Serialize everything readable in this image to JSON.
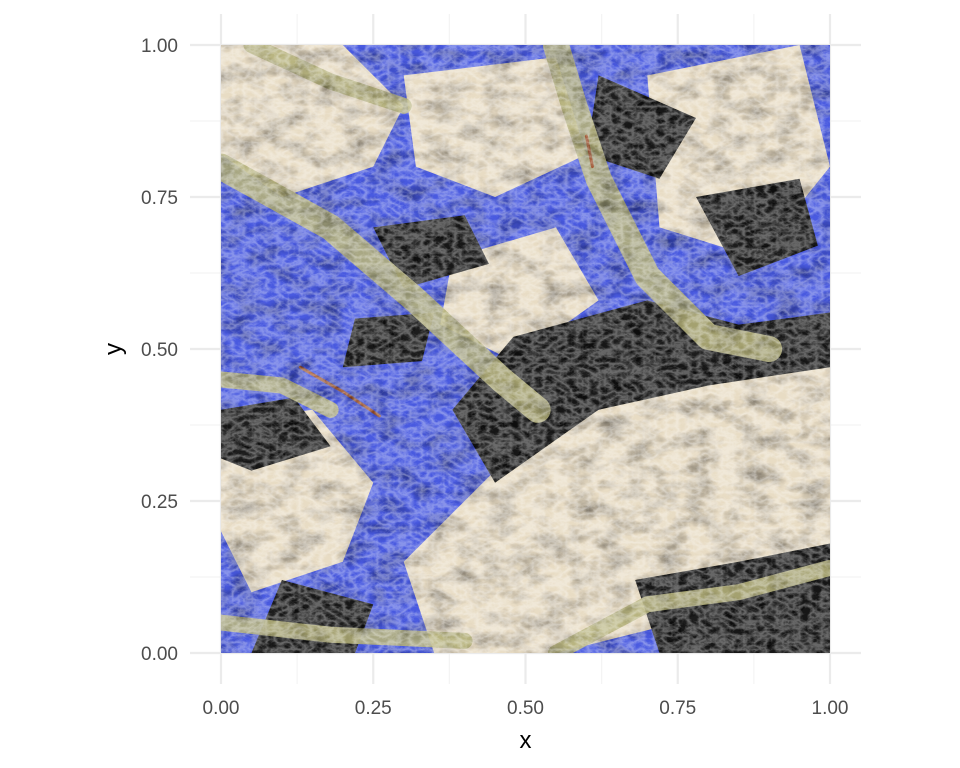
{
  "chart_data": {
    "type": "heatmap",
    "title": "",
    "xlabel": "x",
    "ylabel": "y",
    "xlim": [
      0,
      1
    ],
    "ylim": [
      0,
      1
    ],
    "x_ticks": [
      "0.00",
      "0.25",
      "0.50",
      "0.75",
      "1.00"
    ],
    "y_ticks": [
      "0.00",
      "0.25",
      "0.50",
      "0.75",
      "1.00"
    ],
    "x_tick_values": [
      0,
      0.25,
      0.5,
      0.75,
      1
    ],
    "y_tick_values": [
      0,
      0.25,
      0.5,
      0.75,
      1
    ],
    "grid": true,
    "legend": "none",
    "raster": {
      "content": "false-color satellite image of mountainous terrain",
      "colors": {
        "shadow": "#1c1d1a",
        "blue_slope": "#4a5ae0",
        "pale_ridge": "#e8dcc4",
        "valley_olive": "#b4b07a",
        "rust_stream": "#a0522d"
      }
    }
  }
}
